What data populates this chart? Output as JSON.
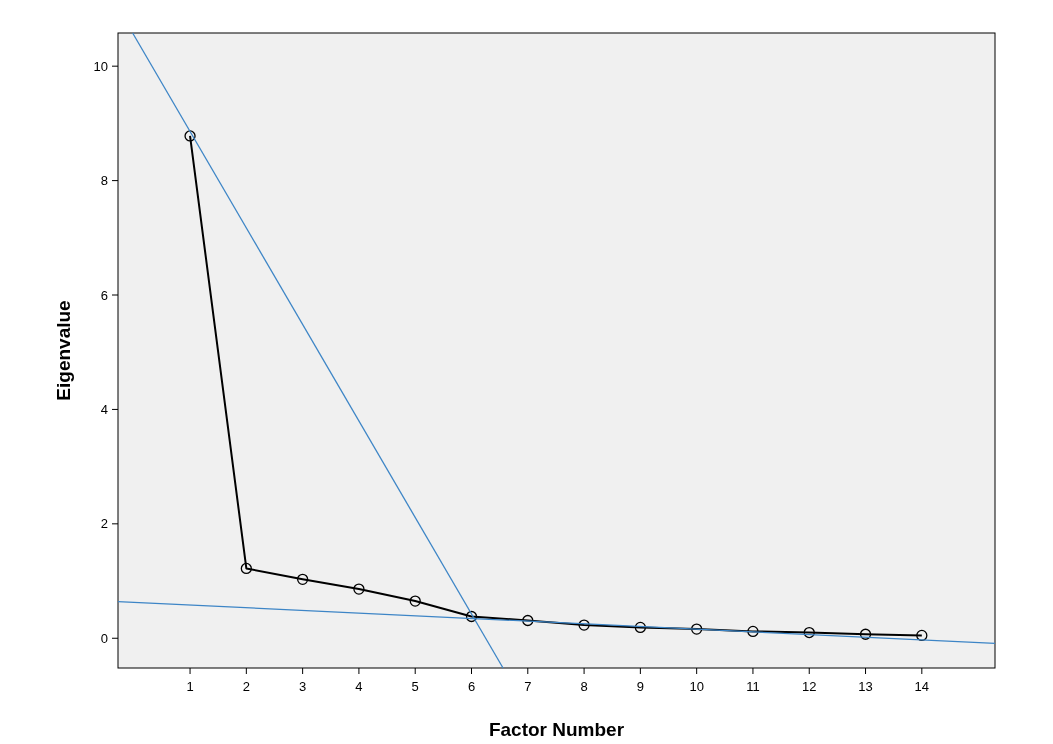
{
  "chart_data": {
    "type": "line",
    "xlabel": "Factor Number",
    "ylabel": "Eigenvalue",
    "xlim": [
      -0.28,
      15.3
    ],
    "ylim": [
      -0.52,
      10.58
    ],
    "xticks": [
      1,
      2,
      3,
      4,
      5,
      6,
      7,
      8,
      9,
      10,
      11,
      12,
      13,
      14
    ],
    "yticks": [
      0,
      2,
      4,
      6,
      8,
      10
    ],
    "grid": false,
    "series": [
      {
        "color": "#000000",
        "marker": "circle",
        "x": [
          1,
          2,
          3,
          4,
          5,
          6,
          7,
          8,
          9,
          10,
          11,
          12,
          13,
          14
        ],
        "values": [
          8.78,
          1.22,
          1.03,
          0.86,
          0.65,
          0.38,
          0.31,
          0.23,
          0.19,
          0.16,
          0.12,
          0.1,
          0.07,
          0.05
        ]
      },
      {
        "type": "line",
        "color": "#3d85c6",
        "marker": "none",
        "x": [
          -0.02,
          6.56
        ],
        "values": [
          10.58,
          -0.52
        ]
      },
      {
        "type": "line",
        "color": "#3d85c6",
        "marker": "none",
        "x": [
          -0.28,
          15.3
        ],
        "values": [
          0.64,
          -0.09
        ]
      }
    ]
  }
}
